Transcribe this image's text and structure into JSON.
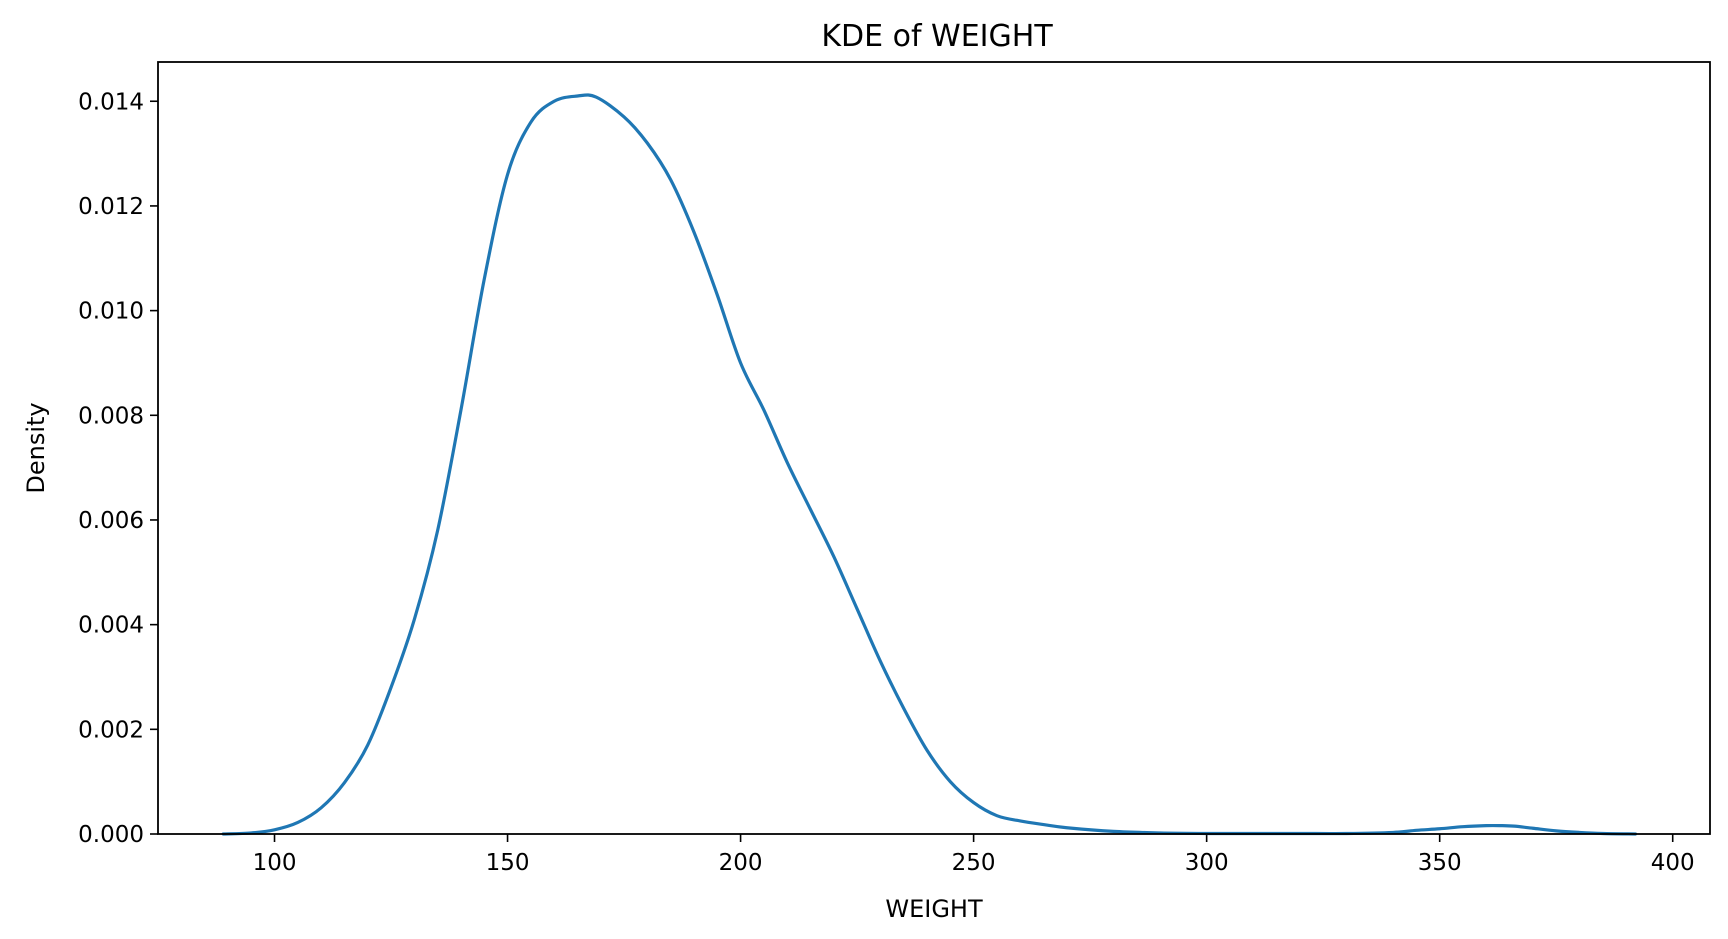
{
  "chart_data": {
    "type": "line",
    "title": "KDE of WEIGHT",
    "xlabel": "WEIGHT",
    "ylabel": "Density",
    "xlim": [
      75,
      408
    ],
    "ylim": [
      0,
      0.01475
    ],
    "xticks": [
      100,
      150,
      200,
      250,
      300,
      350,
      400
    ],
    "xtick_labels": [
      "100",
      "150",
      "200",
      "250",
      "300",
      "350",
      "400"
    ],
    "yticks": [
      0,
      0.002,
      0.004,
      0.006,
      0.008,
      0.01,
      0.012,
      0.014
    ],
    "ytick_labels": [
      "0.000",
      "0.002",
      "0.004",
      "0.006",
      "0.008",
      "0.010",
      "0.012",
      "0.014"
    ],
    "grid": false,
    "series": [
      {
        "color": "#1f77b4",
        "x": [
          89,
          95,
          100,
          105,
          110,
          115,
          120,
          125,
          130,
          135,
          140,
          145,
          150,
          155,
          160,
          165,
          169,
          175,
          180,
          185,
          190,
          195,
          200,
          205,
          210,
          215,
          220,
          225,
          230,
          235,
          240,
          245,
          250,
          255,
          260,
          265,
          270,
          280,
          290,
          300,
          310,
          320,
          330,
          340,
          345,
          350,
          355,
          360,
          363,
          366,
          370,
          375,
          380,
          385,
          392
        ],
        "y": [
          0.0,
          2e-05,
          8e-05,
          0.00022,
          0.0005,
          0.00098,
          0.0017,
          0.0028,
          0.0041,
          0.0058,
          0.0081,
          0.0106,
          0.0126,
          0.0136,
          0.014,
          0.0141,
          0.01408,
          0.0137,
          0.0132,
          0.0125,
          0.0115,
          0.0103,
          0.009,
          0.0081,
          0.0071,
          0.0062,
          0.0053,
          0.0043,
          0.0033,
          0.0024,
          0.0016,
          0.001,
          0.0006,
          0.00035,
          0.00025,
          0.00018,
          0.00012,
          5e-05,
          2e-05,
          1e-05,
          1e-05,
          1e-05,
          1e-05,
          3e-05,
          7e-05,
          0.0001,
          0.00014,
          0.00016,
          0.00016,
          0.00015,
          0.00011,
          6e-05,
          3e-05,
          1e-05,
          0.0
        ]
      }
    ]
  }
}
